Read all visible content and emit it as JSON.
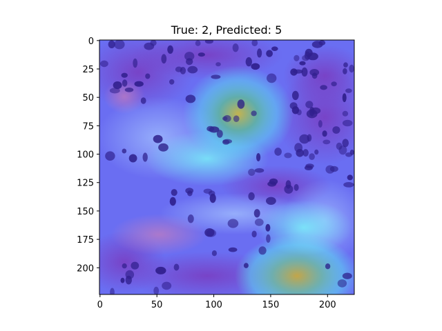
{
  "figure": {
    "title": "True: 2, Predicted: 5",
    "x_ticks": [
      "0",
      "50",
      "100",
      "150",
      "200"
    ],
    "y_ticks": [
      "0",
      "25",
      "50",
      "75",
      "100",
      "125",
      "150",
      "175",
      "200"
    ]
  },
  "image": {
    "description_icon": "microscopy-heatmap-overlay",
    "extent": [
      0,
      224
    ],
    "colors": {
      "base": "#6a6ef2",
      "hot_cyan": "#5ce6f2",
      "hot_yellow": "#c8b648",
      "nucleus": "#2a1a86",
      "tissue": "#8a48c4",
      "pink_tissue": "#c87fc0"
    }
  }
}
